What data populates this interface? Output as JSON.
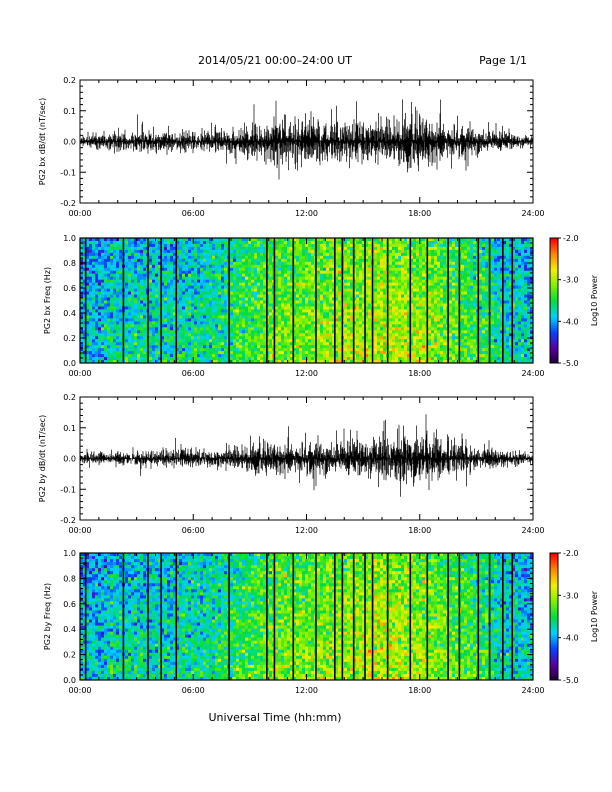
{
  "header": {
    "title": "2014/05/21  00:00–24:00 UT",
    "page": "Page 1/1"
  },
  "footer": {
    "xlabel": "Universal Time (hh:mm)"
  },
  "colors": {
    "trace": "#000000",
    "colormap": [
      "#1a0030",
      "#5a00a0",
      "#0a40ff",
      "#00d0ff",
      "#00dd40",
      "#7ef000",
      "#f0f000",
      "#ff8a00",
      "#ff0000"
    ]
  },
  "chart_data": [
    {
      "type": "line",
      "panel": "bx_waveform",
      "ylabel": "PG2 bx dB/dt (nT/sec)",
      "xlim": [
        0,
        24
      ],
      "ylim": [
        -0.2,
        0.2
      ],
      "x_ticks": [
        "00:00",
        "06:00",
        "12:00",
        "18:00",
        "24:00"
      ],
      "y_ticks": [
        "0.2",
        "0.1",
        "0.0",
        "-0.1",
        "-0.2"
      ],
      "envelope": {
        "hours": [
          0,
          2,
          4,
          6,
          8,
          10,
          12,
          14,
          16,
          17,
          18,
          19,
          20,
          22,
          24
        ],
        "amplitude": [
          0.015,
          0.02,
          0.025,
          0.022,
          0.03,
          0.045,
          0.05,
          0.045,
          0.045,
          0.055,
          0.06,
          0.05,
          0.04,
          0.025,
          0.01
        ]
      }
    },
    {
      "type": "heatmap",
      "panel": "bx_spectrogram",
      "ylabel": "PG2 bx Freq (Hz)",
      "xlim": [
        0,
        24
      ],
      "ylim": [
        0.0,
        1.0
      ],
      "x_ticks": [
        "00:00",
        "06:00",
        "12:00",
        "18:00",
        "24:00"
      ],
      "y_ticks": [
        "1.0",
        "0.8",
        "0.6",
        "0.4",
        "0.2",
        "0.0"
      ],
      "colorbar": {
        "label": "Log10 Power",
        "range": [
          -5.0,
          -2.0
        ],
        "ticks": [
          "-2.0",
          "-3.0",
          "-4.0",
          "-5.0"
        ]
      },
      "gap_lines_hours": [
        0.3,
        2.3,
        3.6,
        4.3,
        5.1,
        7.9,
        9.9,
        10.3,
        11.3,
        12.5,
        13.5,
        13.9,
        14.5,
        15.1,
        15.5,
        16.3,
        17.5,
        18.4,
        19.5,
        20.1,
        21.1,
        21.7,
        22.4,
        22.9
      ]
    },
    {
      "type": "line",
      "panel": "by_waveform",
      "ylabel": "PG2 by dB/dt (nT/sec)",
      "xlim": [
        0,
        24
      ],
      "ylim": [
        -0.2,
        0.2
      ],
      "x_ticks": [
        "00:00",
        "06:00",
        "12:00",
        "18:00",
        "24:00"
      ],
      "y_ticks": [
        "0.2",
        "0.1",
        "0.0",
        "-0.1",
        "-0.2"
      ],
      "envelope": {
        "hours": [
          0,
          2,
          4,
          6,
          8,
          10,
          12,
          14,
          16,
          17,
          18,
          19,
          20,
          22,
          24
        ],
        "amplitude": [
          0.012,
          0.015,
          0.02,
          0.02,
          0.025,
          0.035,
          0.04,
          0.04,
          0.045,
          0.06,
          0.075,
          0.05,
          0.035,
          0.022,
          0.012
        ]
      }
    },
    {
      "type": "heatmap",
      "panel": "by_spectrogram",
      "ylabel": "PG2 by Freq (Hz)",
      "xlim": [
        0,
        24
      ],
      "ylim": [
        0.0,
        1.0
      ],
      "x_ticks": [
        "00:00",
        "06:00",
        "12:00",
        "18:00",
        "24:00"
      ],
      "y_ticks": [
        "1.0",
        "0.8",
        "0.6",
        "0.4",
        "0.2",
        "0.0"
      ],
      "colorbar": {
        "label": "Log10 Power",
        "range": [
          -5.0,
          -2.0
        ],
        "ticks": [
          "-2.0",
          "-3.0",
          "-4.0",
          "-5.0"
        ]
      },
      "gap_lines_hours": [
        0.3,
        2.3,
        3.6,
        4.3,
        5.1,
        7.9,
        9.9,
        10.3,
        11.3,
        12.5,
        13.5,
        13.9,
        14.5,
        15.1,
        15.5,
        16.3,
        17.5,
        18.4,
        19.5,
        20.1,
        21.1,
        21.7,
        22.4,
        22.9
      ]
    }
  ]
}
